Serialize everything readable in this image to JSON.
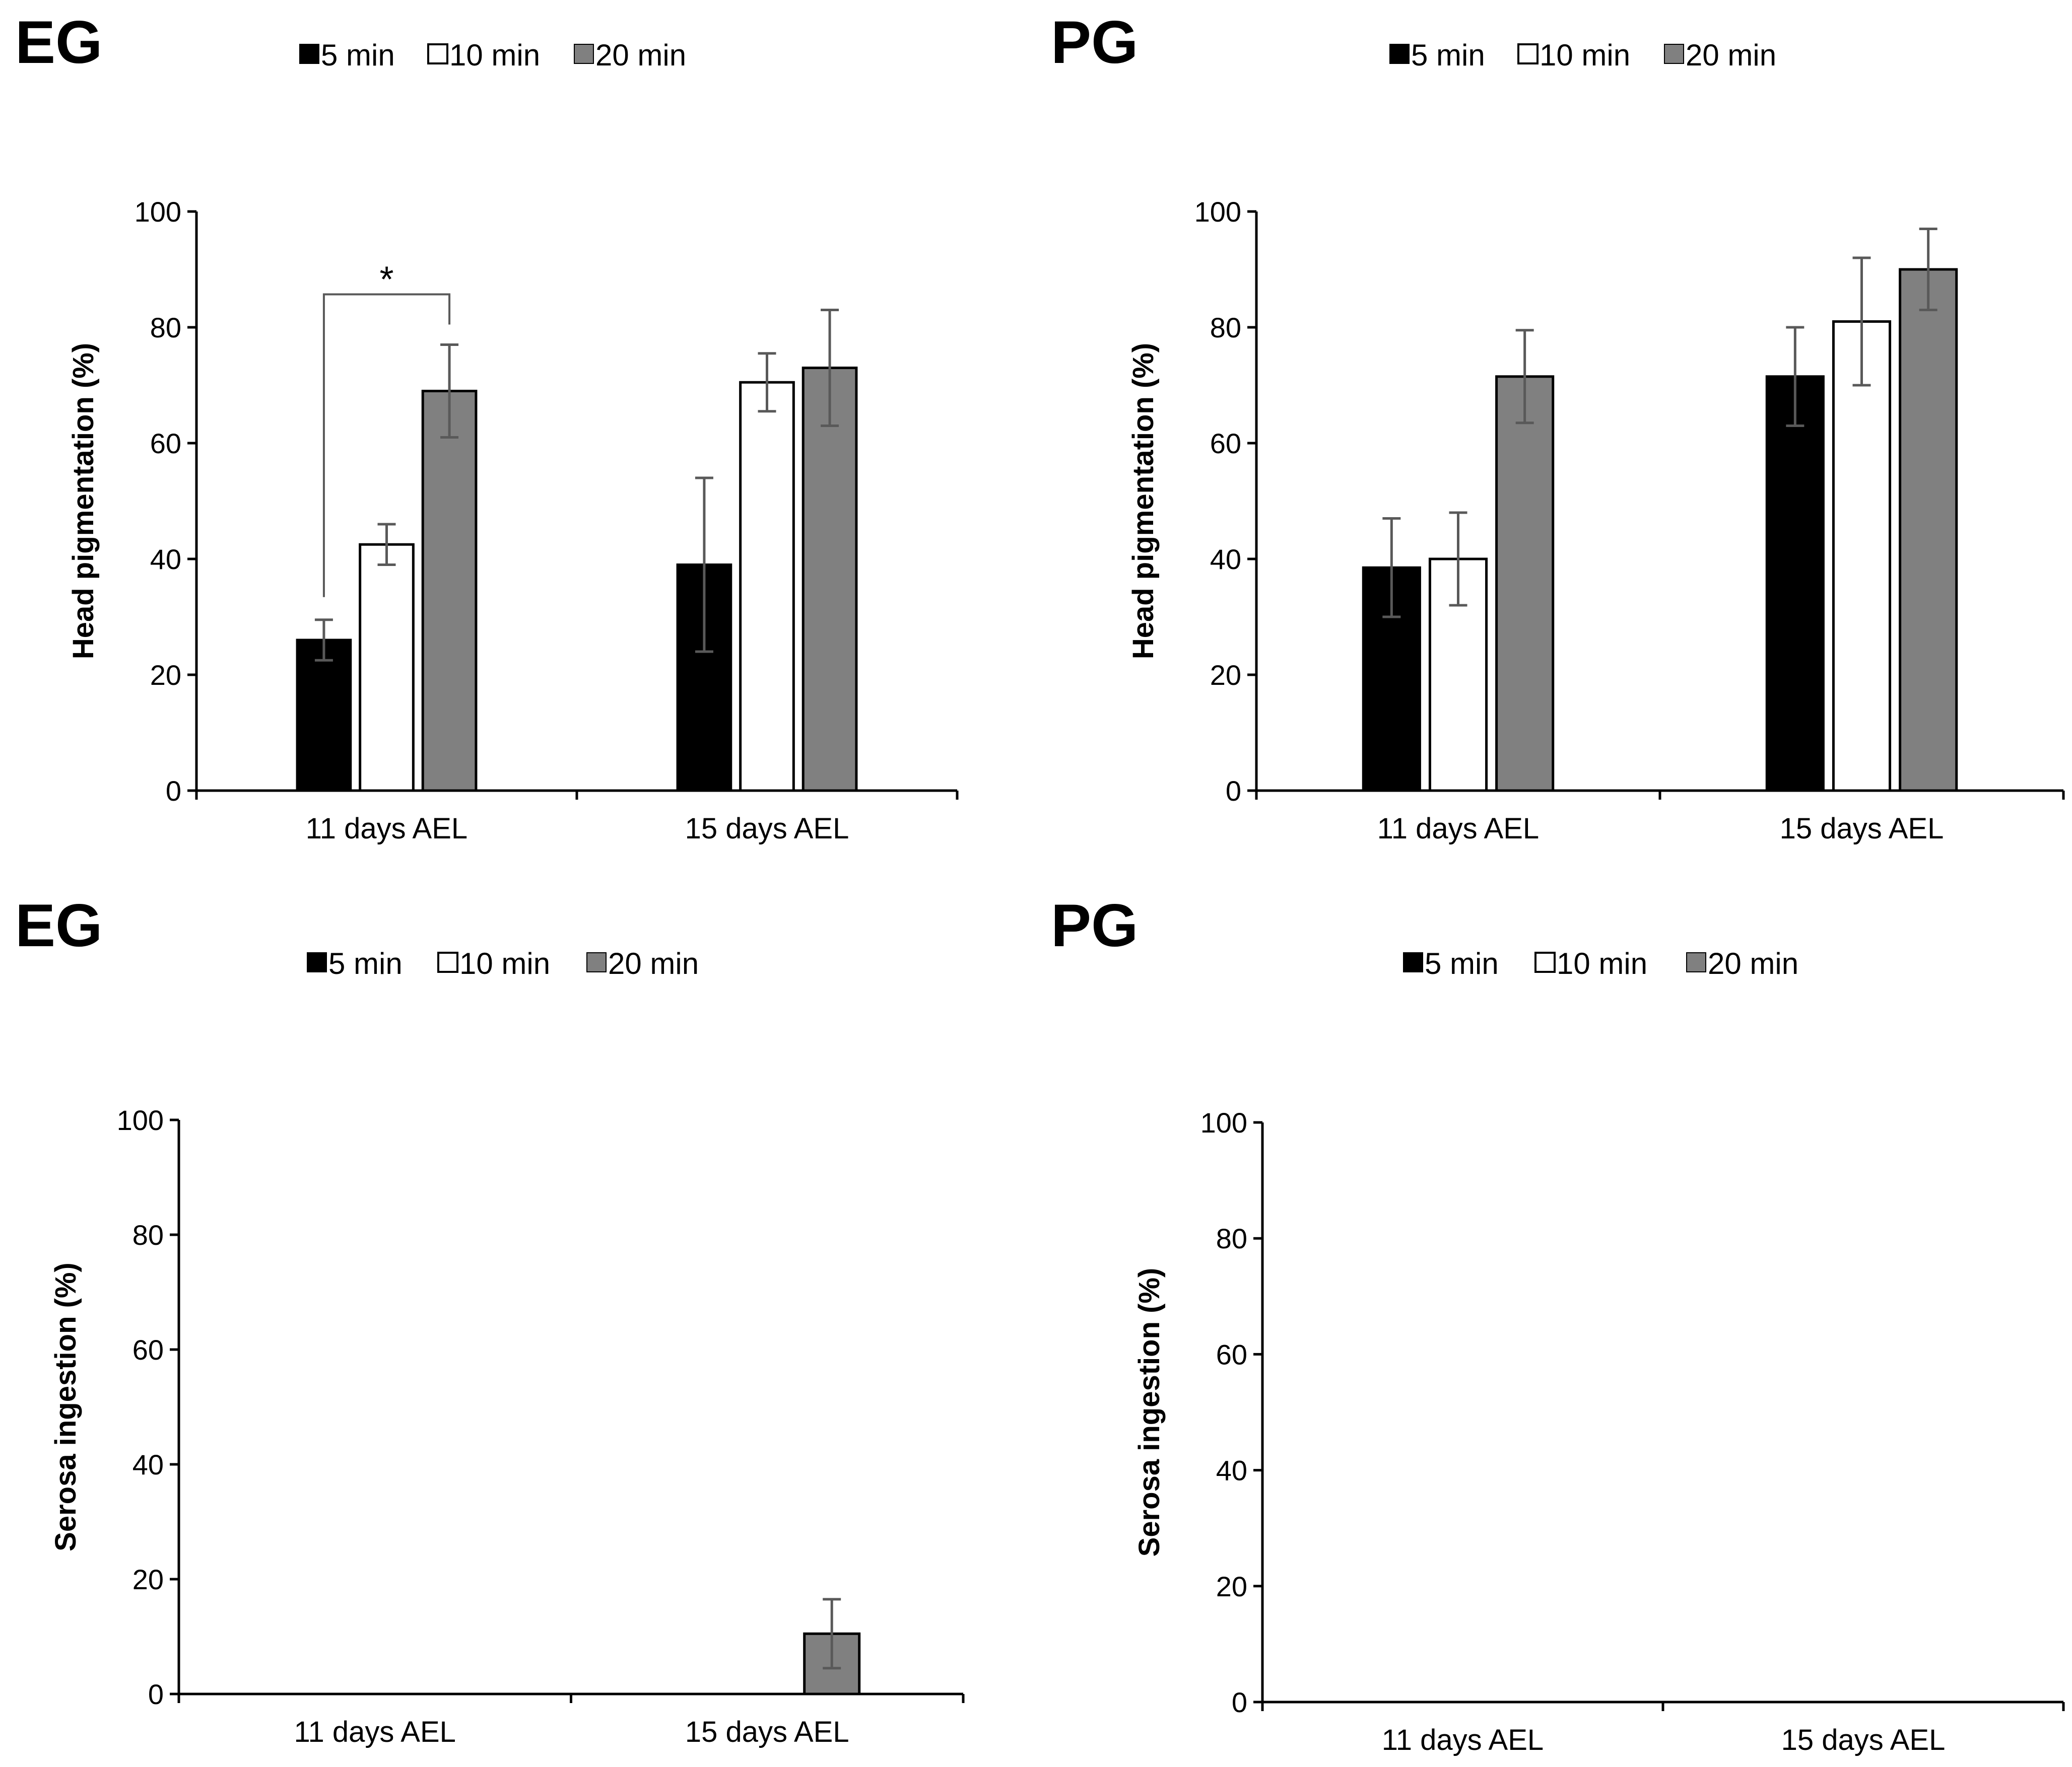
{
  "chart_data": [
    {
      "type": "bar",
      "title": "EG",
      "ylabel": "Head pigmentation (%)",
      "ylim": [
        0,
        100
      ],
      "yticks": [
        0,
        20,
        40,
        60,
        80,
        100
      ],
      "categories": [
        "11 days AEL",
        "15 days AEL"
      ],
      "series": [
        {
          "name": "5 min",
          "values": [
            26,
            39
          ],
          "errors": [
            3.5,
            15
          ],
          "color": "#000000"
        },
        {
          "name": "10 min",
          "values": [
            42.5,
            70.5
          ],
          "errors": [
            3.5,
            5
          ],
          "color": "#ffffff"
        },
        {
          "name": "20 min",
          "values": [
            69,
            73
          ],
          "errors": [
            8,
            10
          ],
          "color": "#808080"
        }
      ],
      "annotations": [
        {
          "text": "*",
          "category": 0,
          "from_series": 0,
          "to_series": 2
        }
      ],
      "legend": "top",
      "grid": false
    },
    {
      "type": "bar",
      "title": "PG",
      "ylabel": "Head pigmentation (%)",
      "ylim": [
        0,
        100
      ],
      "yticks": [
        0,
        20,
        40,
        60,
        80,
        100
      ],
      "categories": [
        "11 days AEL",
        "15 days AEL"
      ],
      "series": [
        {
          "name": "5 min",
          "values": [
            38.5,
            71.5
          ],
          "errors": [
            8.5,
            8.5
          ],
          "color": "#000000"
        },
        {
          "name": "10 min",
          "values": [
            40,
            81
          ],
          "errors": [
            8,
            11
          ],
          "color": "#ffffff"
        },
        {
          "name": "20 min",
          "values": [
            71.5,
            90
          ],
          "errors": [
            8,
            7
          ],
          "color": "#808080"
        }
      ],
      "legend": "top",
      "grid": false
    },
    {
      "type": "bar",
      "title": "EG",
      "ylabel": "Serosa ingestion (%)",
      "ylim": [
        0,
        100
      ],
      "yticks": [
        0,
        20,
        40,
        60,
        80,
        100
      ],
      "categories": [
        "11 days AEL",
        "15 days AEL"
      ],
      "series": [
        {
          "name": "5 min",
          "values": [
            0,
            0
          ],
          "errors": [
            0,
            0
          ],
          "color": "#000000"
        },
        {
          "name": "10 min",
          "values": [
            0,
            0
          ],
          "errors": [
            0,
            0
          ],
          "color": "#ffffff"
        },
        {
          "name": "20 min",
          "values": [
            0,
            10.5
          ],
          "errors": [
            0,
            6
          ],
          "color": "#808080"
        }
      ],
      "legend": "top",
      "grid": false
    },
    {
      "type": "bar",
      "title": "PG",
      "ylabel": "Serosa ingestion (%)",
      "ylim": [
        0,
        100
      ],
      "yticks": [
        0,
        20,
        40,
        60,
        80,
        100
      ],
      "categories": [
        "11 days AEL",
        "15 days AEL"
      ],
      "series": [
        {
          "name": "5 min",
          "values": [
            0,
            0
          ],
          "errors": [
            0,
            0
          ],
          "color": "#000000"
        },
        {
          "name": "10 min",
          "values": [
            0,
            0
          ],
          "errors": [
            0,
            0
          ],
          "color": "#ffffff"
        },
        {
          "name": "20 min",
          "values": [
            0,
            0
          ],
          "errors": [
            0,
            0
          ],
          "color": "#808080"
        }
      ],
      "legend": "top",
      "grid": false
    }
  ]
}
